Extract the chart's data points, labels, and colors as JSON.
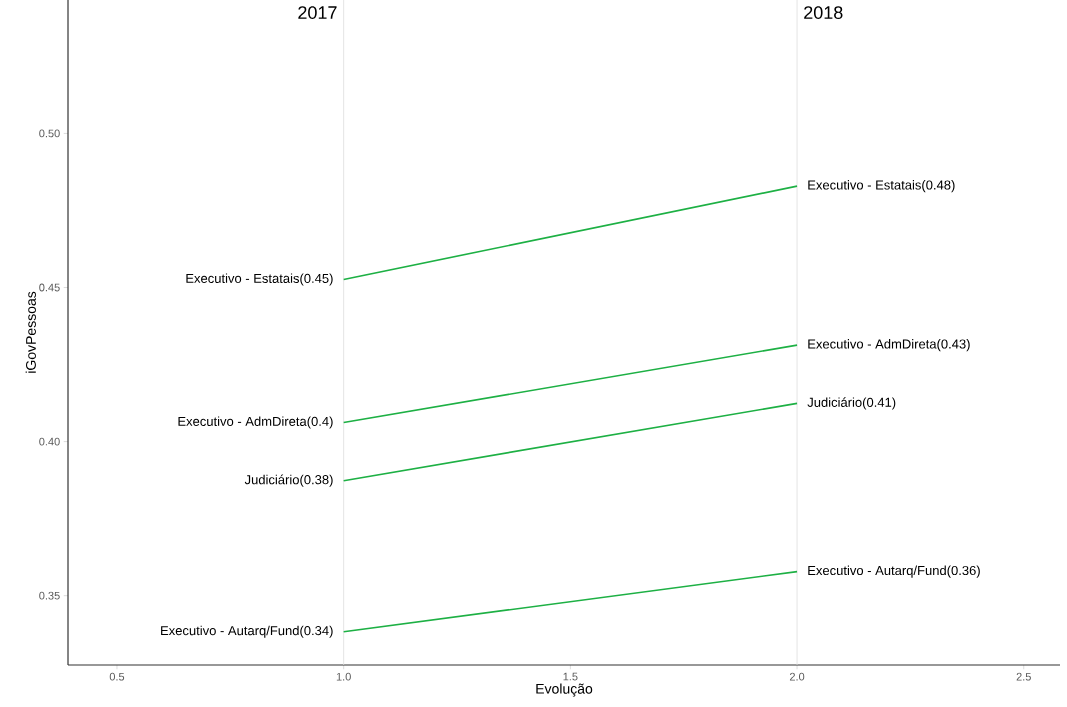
{
  "chart_data": {
    "type": "line",
    "xlabel": "Evolução",
    "ylabel": "iGovPessoas",
    "x": [
      1,
      2
    ],
    "series": [
      {
        "color": "#1db044",
        "values": [
          0.4526,
          0.4829
        ],
        "value_labels": [
          "Executivo - Estatais(0.45)",
          "Executivo - Estatais(0.48)"
        ]
      },
      {
        "color": "#1db044",
        "values": [
          0.4062,
          0.4313
        ],
        "value_labels": [
          "Executivo - AdmDireta(0.4)",
          "Executivo - AdmDireta(0.43)"
        ]
      },
      {
        "color": "#1db044",
        "values": [
          0.3873,
          0.4124
        ],
        "value_labels": [
          "Judiciário(0.38)",
          "Judiciário(0.41)"
        ]
      },
      {
        "color": "#1db044",
        "values": [
          0.3383,
          0.3578
        ],
        "value_labels": [
          "Executivo - Autarq/Fund(0.34)",
          "Executivo - Autarq/Fund(0.36)"
        ]
      }
    ],
    "xlim": [
      0.392,
      2.58
    ],
    "ylim": [
      0.3275,
      0.5433
    ],
    "xticks": [
      {
        "value": 0.5,
        "label": "0.5"
      },
      {
        "value": 1.0,
        "label": "1.0"
      },
      {
        "value": 1.5,
        "label": "1.5"
      },
      {
        "value": 2.0,
        "label": "2.0"
      },
      {
        "value": 2.5,
        "label": "2.5"
      }
    ],
    "yticks": [
      0.35,
      {
        "value": 0.4,
        "label": "0.40"
      },
      0.45,
      {
        "value": 0.5,
        "label": "0.50"
      }
    ],
    "ref_lines": [
      {
        "axis": "x",
        "value": 1,
        "color": "#dddddd"
      },
      {
        "axis": "x",
        "value": 2,
        "color": "#dddddd"
      }
    ],
    "annotations": [
      {
        "text": "2017",
        "x": 1
      },
      {
        "text": "2018",
        "x": 2
      }
    ],
    "grid": false,
    "marker": "none",
    "line_style": "solid"
  }
}
